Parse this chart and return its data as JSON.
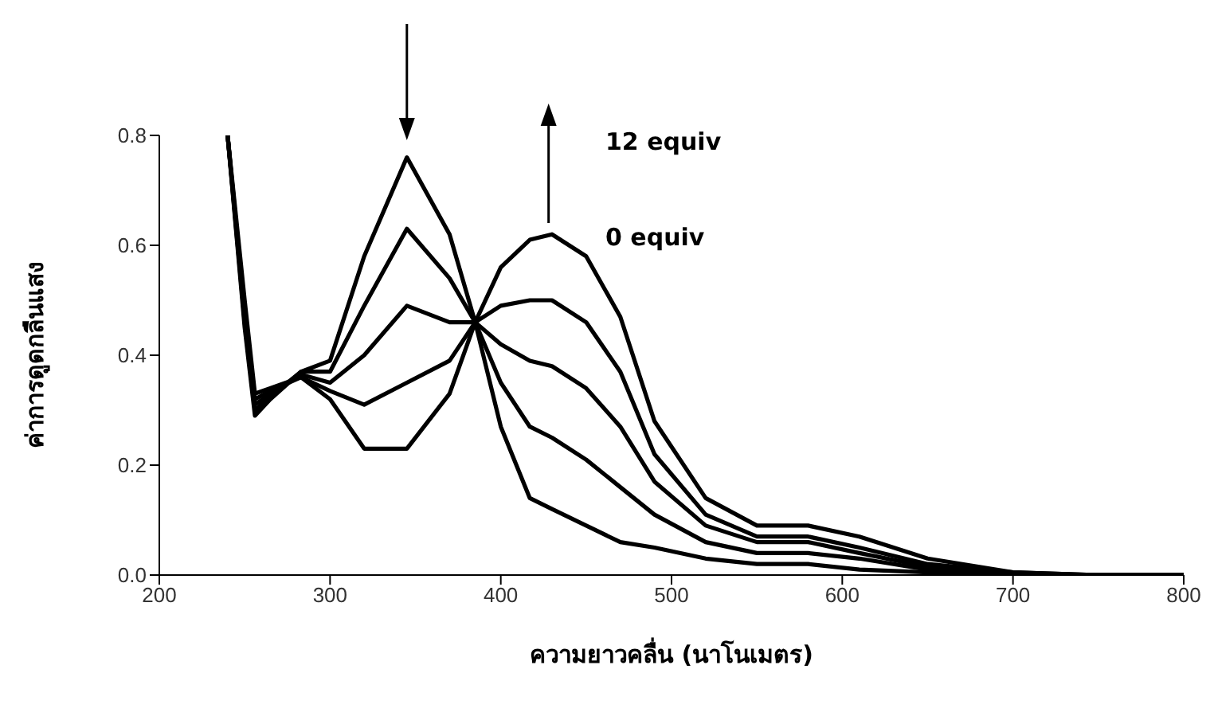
{
  "chart_data": {
    "type": "line",
    "xlabel": "ความยาวคลื่น (นาโนเมตร)",
    "ylabel": "ค่าการดูดกลืนแสง",
    "annotations": [
      "12 equiv",
      "0 equiv"
    ],
    "x": [
      240,
      250,
      256,
      265,
      283,
      300,
      320,
      345,
      370,
      385,
      400,
      417,
      430,
      450,
      470,
      490,
      520,
      550,
      580,
      610,
      650,
      700,
      750,
      800
    ],
    "series": [
      {
        "color": "#000000",
        "values": [
          0.8,
          0.45,
          0.29,
          0.32,
          0.37,
          0.39,
          0.58,
          0.76,
          0.62,
          0.46,
          0.27,
          0.14,
          0.12,
          0.09,
          0.06,
          0.05,
          0.03,
          0.02,
          0.02,
          0.01,
          0.005,
          0,
          0,
          0
        ]
      },
      {
        "color": "#000000",
        "values": [
          0.8,
          0.46,
          0.3,
          0.325,
          0.37,
          0.37,
          0.49,
          0.63,
          0.54,
          0.46,
          0.35,
          0.27,
          0.25,
          0.21,
          0.16,
          0.11,
          0.06,
          0.04,
          0.04,
          0.03,
          0.01,
          0,
          0,
          0
        ]
      },
      {
        "color": "#000000",
        "values": [
          0.8,
          0.47,
          0.31,
          0.33,
          0.365,
          0.35,
          0.4,
          0.49,
          0.46,
          0.46,
          0.42,
          0.39,
          0.38,
          0.34,
          0.27,
          0.17,
          0.09,
          0.06,
          0.06,
          0.04,
          0.015,
          0,
          0,
          0
        ]
      },
      {
        "color": "#000000",
        "values": [
          0.8,
          0.48,
          0.32,
          0.335,
          0.36,
          0.335,
          0.31,
          0.35,
          0.39,
          0.46,
          0.49,
          0.5,
          0.5,
          0.46,
          0.37,
          0.22,
          0.11,
          0.07,
          0.07,
          0.05,
          0.02,
          0.005,
          0,
          0
        ]
      },
      {
        "color": "#000000",
        "values": [
          0.8,
          0.5,
          0.33,
          0.34,
          0.36,
          0.32,
          0.23,
          0.23,
          0.33,
          0.46,
          0.56,
          0.61,
          0.62,
          0.58,
          0.47,
          0.28,
          0.14,
          0.09,
          0.09,
          0.07,
          0.03,
          0.005,
          0,
          0
        ]
      }
    ],
    "xlim": [
      200,
      800
    ],
    "xticks": [
      200,
      300,
      400,
      500,
      600,
      700,
      800
    ],
    "ylim": [
      0,
      0.8
    ],
    "yticks": [
      {
        "value": 0,
        "label": "0.0"
      },
      {
        "value": 0.2,
        "label": "0.2"
      },
      {
        "value": 0.4,
        "label": "0.4"
      },
      {
        "value": 0.6,
        "label": "0.6"
      },
      {
        "value": 0.8,
        "label": "0.8"
      }
    ],
    "grid": false,
    "legend": false,
    "marker": "none",
    "line_style": "solid"
  }
}
